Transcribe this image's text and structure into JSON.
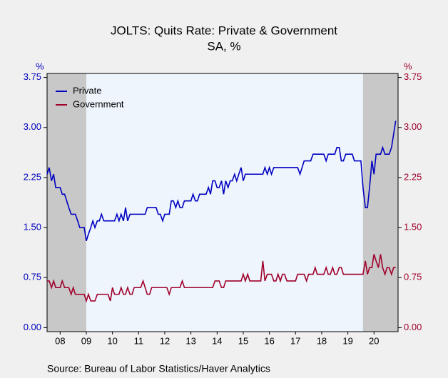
{
  "chart_data": {
    "type": "line",
    "title": "JOLTS: Quits Rate: Private & Government",
    "subtitle": "SA, %",
    "y_label": "%",
    "y2_label": "%",
    "source": "Source:  Bureau of Labor Statistics/Haver Analytics",
    "x": [
      2008.0,
      2008.08,
      2008.17,
      2008.25,
      2008.33,
      2008.42,
      2008.5,
      2008.58,
      2008.67,
      2008.75,
      2008.83,
      2008.92,
      2009.0,
      2009.08,
      2009.17,
      2009.25,
      2009.33,
      2009.42,
      2009.5,
      2009.58,
      2009.67,
      2009.75,
      2009.83,
      2009.92,
      2010.0,
      2010.08,
      2010.17,
      2010.25,
      2010.33,
      2010.42,
      2010.5,
      2010.58,
      2010.67,
      2010.75,
      2010.83,
      2010.92,
      2011.0,
      2011.08,
      2011.17,
      2011.25,
      2011.33,
      2011.42,
      2011.5,
      2011.58,
      2011.67,
      2011.75,
      2011.83,
      2011.92,
      2012.0,
      2012.08,
      2012.17,
      2012.25,
      2012.33,
      2012.42,
      2012.5,
      2012.58,
      2012.67,
      2012.75,
      2012.83,
      2012.92,
      2013.0,
      2013.08,
      2013.17,
      2013.25,
      2013.33,
      2013.42,
      2013.5,
      2013.58,
      2013.67,
      2013.75,
      2013.83,
      2013.92,
      2014.0,
      2014.08,
      2014.17,
      2014.25,
      2014.33,
      2014.42,
      2014.5,
      2014.58,
      2014.67,
      2014.75,
      2014.83,
      2014.92,
      2015.0,
      2015.08,
      2015.17,
      2015.25,
      2015.33,
      2015.42,
      2015.5,
      2015.58,
      2015.67,
      2015.75,
      2015.83,
      2015.92,
      2016.0,
      2016.08,
      2016.17,
      2016.25,
      2016.33,
      2016.42,
      2016.5,
      2016.58,
      2016.67,
      2016.75,
      2016.83,
      2016.92,
      2017.0,
      2017.08,
      2017.17,
      2017.25,
      2017.33,
      2017.42,
      2017.5,
      2017.58,
      2017.67,
      2017.75,
      2017.83,
      2017.92,
      2018.0,
      2018.08,
      2018.17,
      2018.25,
      2018.33,
      2018.42,
      2018.5,
      2018.58,
      2018.67,
      2018.75,
      2018.83,
      2018.92,
      2019.0,
      2019.08,
      2019.17,
      2019.25,
      2019.33,
      2019.42,
      2019.5,
      2019.58,
      2019.67,
      2019.75,
      2019.83,
      2019.92,
      2020.0,
      2020.08,
      2020.17,
      2020.25,
      2020.33,
      2020.42,
      2020.5,
      2020.58,
      2020.67,
      2020.75,
      2020.83,
      2020.92,
      2021.0,
      2021.08,
      2021.17,
      2021.25,
      2021.33
    ],
    "series": [
      {
        "name": "Private",
        "color": "#0000c0",
        "values": [
          2.3,
          2.4,
          2.2,
          2.3,
          2.1,
          2.1,
          2.1,
          2.0,
          2.0,
          1.9,
          1.8,
          1.7,
          1.7,
          1.7,
          1.6,
          1.5,
          1.5,
          1.5,
          1.3,
          1.4,
          1.5,
          1.6,
          1.5,
          1.6,
          1.6,
          1.7,
          1.6,
          1.6,
          1.6,
          1.6,
          1.6,
          1.6,
          1.7,
          1.6,
          1.7,
          1.6,
          1.8,
          1.6,
          1.7,
          1.7,
          1.7,
          1.7,
          1.7,
          1.7,
          1.7,
          1.7,
          1.8,
          1.8,
          1.8,
          1.8,
          1.8,
          1.7,
          1.7,
          1.6,
          1.7,
          1.7,
          1.7,
          1.9,
          1.9,
          1.8,
          1.9,
          1.8,
          1.8,
          1.9,
          1.9,
          1.9,
          1.9,
          2.0,
          1.9,
          1.9,
          2.0,
          2.0,
          2.0,
          2.0,
          2.1,
          2.0,
          2.2,
          2.2,
          2.1,
          2.1,
          2.2,
          2.0,
          2.2,
          2.1,
          2.2,
          2.2,
          2.3,
          2.2,
          2.3,
          2.4,
          2.2,
          2.3,
          2.3,
          2.3,
          2.3,
          2.3,
          2.3,
          2.3,
          2.3,
          2.3,
          2.4,
          2.3,
          2.4,
          2.3,
          2.4,
          2.4,
          2.4,
          2.4,
          2.4,
          2.4,
          2.4,
          2.4,
          2.4,
          2.4,
          2.4,
          2.4,
          2.3,
          2.4,
          2.5,
          2.5,
          2.5,
          2.5,
          2.6,
          2.6,
          2.6,
          2.6,
          2.6,
          2.6,
          2.5,
          2.6,
          2.6,
          2.6,
          2.6,
          2.7,
          2.7,
          2.5,
          2.5,
          2.6,
          2.6,
          2.6,
          2.6,
          2.5,
          2.5,
          2.5,
          2.5,
          2.1,
          1.8,
          1.8,
          2.1,
          2.5,
          2.3,
          2.6,
          2.6,
          2.6,
          2.7,
          2.6,
          2.6,
          2.6,
          2.7,
          2.9,
          3.1
        ]
      },
      {
        "name": "Government",
        "color": "#a0002a",
        "axis": "y2",
        "values": [
          0.7,
          0.7,
          0.6,
          0.7,
          0.6,
          0.6,
          0.6,
          0.7,
          0.6,
          0.6,
          0.6,
          0.5,
          0.6,
          0.5,
          0.5,
          0.5,
          0.5,
          0.5,
          0.4,
          0.5,
          0.4,
          0.4,
          0.4,
          0.5,
          0.5,
          0.5,
          0.5,
          0.5,
          0.5,
          0.4,
          0.6,
          0.5,
          0.5,
          0.5,
          0.6,
          0.5,
          0.5,
          0.6,
          0.5,
          0.5,
          0.6,
          0.6,
          0.6,
          0.6,
          0.7,
          0.6,
          0.5,
          0.5,
          0.6,
          0.6,
          0.6,
          0.6,
          0.6,
          0.6,
          0.6,
          0.6,
          0.5,
          0.6,
          0.6,
          0.6,
          0.6,
          0.6,
          0.7,
          0.6,
          0.6,
          0.6,
          0.6,
          0.6,
          0.6,
          0.6,
          0.6,
          0.6,
          0.6,
          0.6,
          0.6,
          0.6,
          0.6,
          0.7,
          0.7,
          0.7,
          0.6,
          0.6,
          0.7,
          0.7,
          0.7,
          0.7,
          0.7,
          0.7,
          0.7,
          0.7,
          0.8,
          0.7,
          0.8,
          0.7,
          0.7,
          0.7,
          0.7,
          0.7,
          0.7,
          1.0,
          0.7,
          0.8,
          0.8,
          0.8,
          0.7,
          0.7,
          0.8,
          0.7,
          0.8,
          0.8,
          0.7,
          0.7,
          0.7,
          0.7,
          0.7,
          0.8,
          0.8,
          0.8,
          0.8,
          0.7,
          0.8,
          0.8,
          0.8,
          0.9,
          0.8,
          0.8,
          0.8,
          0.8,
          0.9,
          0.8,
          0.8,
          0.9,
          0.8,
          0.8,
          0.9,
          0.9,
          0.8,
          0.8,
          0.8,
          0.8,
          0.8,
          0.8,
          0.8,
          0.8,
          0.8,
          0.8,
          1.0,
          0.8,
          0.9,
          0.9,
          1.1,
          1.0,
          0.9,
          1.1,
          0.9,
          0.8,
          0.9,
          0.9,
          0.8,
          0.9,
          0.9
        ]
      }
    ],
    "xlim": [
      2008.0,
      2021.42
    ],
    "xticks": [
      {
        "value": 2008.5,
        "label": "08"
      },
      {
        "value": 2009.5,
        "label": "09"
      },
      {
        "value": 2010.5,
        "label": "10"
      },
      {
        "value": 2011.5,
        "label": "11"
      },
      {
        "value": 2012.5,
        "label": "12"
      },
      {
        "value": 2013.5,
        "label": "13"
      },
      {
        "value": 2014.5,
        "label": "14"
      },
      {
        "value": 2015.5,
        "label": "15"
      },
      {
        "value": 2016.5,
        "label": "16"
      },
      {
        "value": 2017.5,
        "label": "17"
      },
      {
        "value": 2018.5,
        "label": "18"
      },
      {
        "value": 2019.5,
        "label": "19"
      },
      {
        "value": 2020.5,
        "label": "20"
      }
    ],
    "ylim": [
      -0.06,
      3.81
    ],
    "yticks": [
      {
        "value": 0,
        "label": "0.00"
      },
      {
        "value": 0.75,
        "label": "0.75"
      },
      {
        "value": 1.5,
        "label": "1.50"
      },
      {
        "value": 2.25,
        "label": "2.25"
      },
      {
        "value": 3,
        "label": "3.00"
      },
      {
        "value": 3.75,
        "label": "3.75"
      }
    ],
    "y2lim": [
      -0.06,
      3.81
    ],
    "y2ticks": [
      {
        "value": 0,
        "label": "0.00"
      },
      {
        "value": 0.75,
        "label": "0.75"
      },
      {
        "value": 1.5,
        "label": "1.50"
      },
      {
        "value": 2.25,
        "label": "2.25"
      },
      {
        "value": 3,
        "label": "3.00"
      },
      {
        "value": 3.75,
        "label": "3.75"
      }
    ],
    "shaded_periods": [
      [
        2008.0,
        2009.5
      ],
      [
        2020.08,
        2021.42
      ]
    ],
    "shade_color": "#c8c8c8",
    "legend": "upper left"
  }
}
